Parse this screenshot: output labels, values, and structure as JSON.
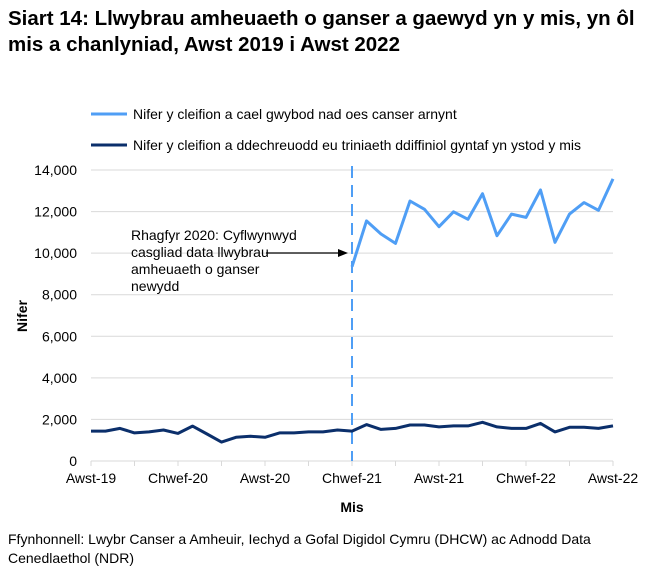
{
  "title": "Siart 14: Llwybrau amheuaeth o ganser a gaewyd yn y mis, yn ôl mis a chanlyniad, Awst 2019 i Awst 2022",
  "source": "Ffynhonnell: Lwybr Canser a Amheuir, Iechyd a Gofal Digidol Cymru (DHCW) ac Adnodd Data Cenedlaethol (NDR)",
  "chart_data": {
    "type": "line",
    "xlabel": "Mis",
    "ylabel": "Nifer",
    "ylim": [
      0,
      14000
    ],
    "yticks": [
      0,
      2000,
      4000,
      6000,
      8000,
      10000,
      12000,
      14000
    ],
    "ytick_labels": [
      "0",
      "2,000",
      "4,000",
      "6,000",
      "8,000",
      "10,000",
      "12,000",
      "14,000"
    ],
    "xtick_labels": [
      "Awst-19",
      "Chwef-20",
      "Awst-20",
      "Chwef-21",
      "Awst-21",
      "Chwef-22",
      "Awst-22"
    ],
    "xtick_months": [
      "2019-08",
      "2020-02",
      "2020-08",
      "2021-02",
      "2021-08",
      "2022-02",
      "2022-08"
    ],
    "grid": "horizontal",
    "legend_position": "top",
    "x": [
      "2019-08",
      "2019-09",
      "2019-10",
      "2019-11",
      "2019-12",
      "2020-01",
      "2020-02",
      "2020-03",
      "2020-04",
      "2020-05",
      "2020-06",
      "2020-07",
      "2020-08",
      "2020-09",
      "2020-10",
      "2020-11",
      "2020-12",
      "2021-01",
      "2021-02",
      "2021-03",
      "2021-04",
      "2021-05",
      "2021-06",
      "2021-07",
      "2021-08",
      "2021-09",
      "2021-10",
      "2021-11",
      "2021-12",
      "2022-01",
      "2022-02",
      "2022-03",
      "2022-04",
      "2022-05",
      "2022-06",
      "2022-07",
      "2022-08"
    ],
    "series": [
      {
        "name": "Nifer y cleifion a cael gwybod nad oes canser arnynt",
        "color": "#4f9ef5",
        "values": [
          null,
          null,
          null,
          null,
          null,
          null,
          null,
          null,
          null,
          null,
          null,
          null,
          null,
          null,
          null,
          null,
          null,
          null,
          9350,
          11550,
          10920,
          10470,
          12510,
          12110,
          11270,
          11990,
          11630,
          12860,
          10840,
          11880,
          11720,
          13040,
          10520,
          11880,
          12430,
          12060,
          13570
        ]
      },
      {
        "name": "Nifer y cleifion a ddechreuodd eu triniaeth ddiffiniol gyntaf yn ystod y mis",
        "color": "#0b2f6b",
        "values": [
          1440,
          1440,
          1570,
          1350,
          1400,
          1490,
          1330,
          1680,
          1300,
          910,
          1140,
          1190,
          1140,
          1350,
          1350,
          1400,
          1400,
          1490,
          1440,
          1750,
          1520,
          1570,
          1730,
          1730,
          1640,
          1690,
          1690,
          1860,
          1640,
          1570,
          1570,
          1810,
          1400,
          1620,
          1620,
          1570,
          1690
        ]
      }
    ],
    "vline": {
      "x": "2021-02",
      "style": "dashed",
      "color": "#4f9ef5"
    },
    "annotation": {
      "text": "Rhagfyr 2020: Cyflwynwyd casgliad data llwybrau amheuaeth o ganser newydd",
      "lines": [
        "Rhagfyr 2020: Cyflwynwyd",
        "casgliad data llwybrau",
        "amheuaeth o ganser",
        "newydd"
      ],
      "arrow_to": "2021-02"
    }
  }
}
